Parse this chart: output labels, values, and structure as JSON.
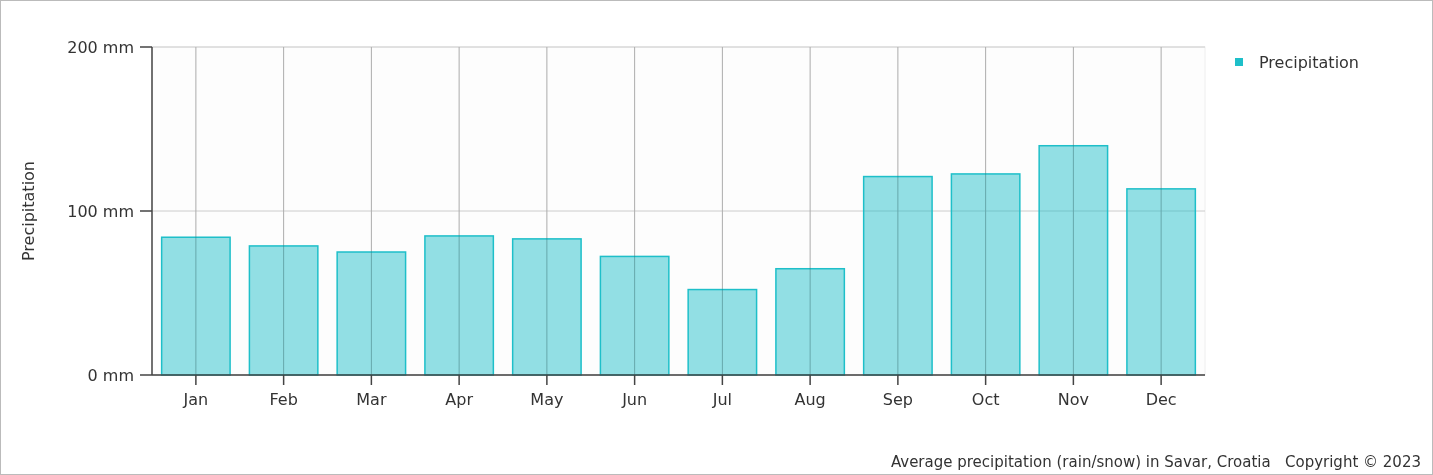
{
  "chart_data": {
    "type": "bar",
    "ylabel": "Precipitation",
    "categories": [
      "Jan",
      "Feb",
      "Mar",
      "Apr",
      "May",
      "Jun",
      "Jul",
      "Aug",
      "Sep",
      "Oct",
      "Nov",
      "Dec"
    ],
    "series": [
      {
        "name": "Precipitation",
        "color": "#1ebfc9",
        "values": [
          84,
          78.7,
          75,
          84.8,
          83,
          72.3,
          52.1,
          64.8,
          121,
          122.6,
          139.8,
          113.5
        ]
      }
    ],
    "ylim": [
      0,
      200
    ],
    "yticks": [
      {
        "value": 0,
        "label": "0 mm"
      },
      {
        "value": 100,
        "label": "100 mm"
      },
      {
        "value": 200,
        "label": "200 mm"
      }
    ],
    "grid": true,
    "legend": "top right",
    "annotations": [
      "Average precipitation (rain/snow) in Savar, Croatia   Copyright © 2023"
    ]
  }
}
